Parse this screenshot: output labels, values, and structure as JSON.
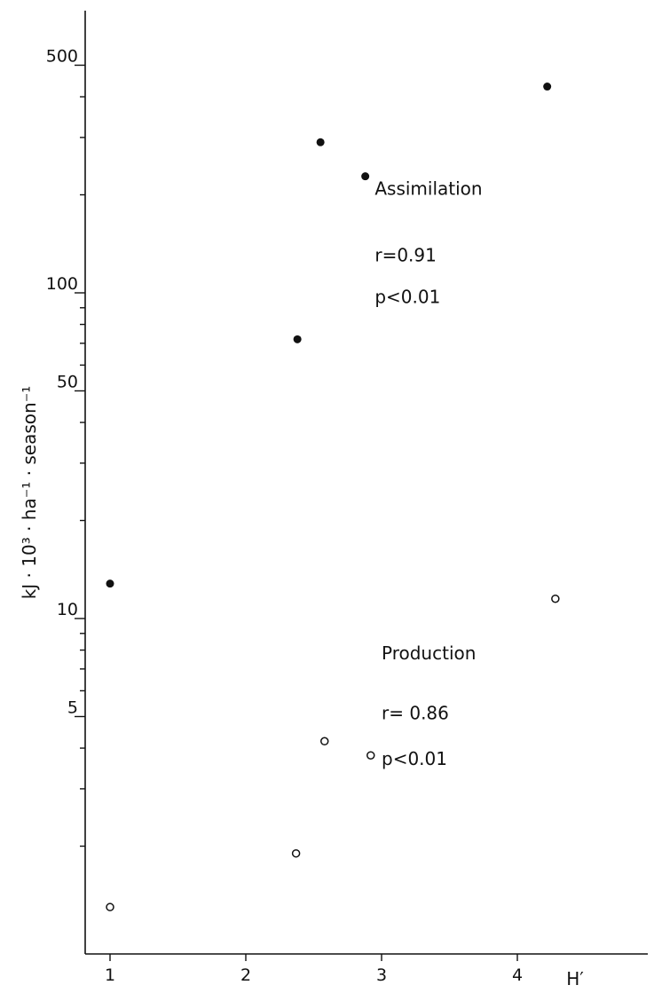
{
  "chart_data": {
    "type": "scatter",
    "xlabel": "H′",
    "ylabel": "kJ · 10³ · ha⁻¹ · season⁻¹",
    "y_scale": "log",
    "xlim": [
      0.8,
      4.9
    ],
    "ylim": [
      1.1,
      800
    ],
    "x_ticks": [
      1,
      2,
      3,
      4
    ],
    "x_tick_labels": [
      "1",
      "2",
      "3",
      "4"
    ],
    "y_labeled_ticks": [
      5,
      10,
      50,
      100,
      500
    ],
    "y_labeled_tick_labels": [
      "5",
      "10",
      "50",
      "100",
      "500"
    ],
    "y_minor_ticks": [
      2,
      3,
      4,
      6,
      7,
      8,
      9,
      20,
      30,
      40,
      60,
      70,
      80,
      90,
      200,
      300,
      400
    ],
    "grid": false,
    "series": [
      {
        "marker": "filled-circle",
        "x": [
          1.0,
          2.38,
          2.55,
          2.88,
          4.22
        ],
        "y": [
          12.8,
          72,
          290,
          228,
          430
        ]
      },
      {
        "marker": "open-circle",
        "x": [
          1.0,
          2.37,
          2.58,
          2.92,
          4.28
        ],
        "y": [
          1.3,
          1.9,
          4.2,
          3.8,
          11.5
        ]
      }
    ],
    "annotations": [
      {
        "text": "Assimilation",
        "x": 2.95,
        "y": 200
      },
      {
        "text": "r=0.91",
        "x": 2.95,
        "y": 125
      },
      {
        "text": "p<0.01",
        "x": 2.95,
        "y": 93
      },
      {
        "text": "Production",
        "x": 3.0,
        "y": 7.5
      },
      {
        "text": "r= 0.86",
        "x": 3.0,
        "y": 4.9
      },
      {
        "text": "p<0.01",
        "x": 3.0,
        "y": 3.55
      }
    ]
  }
}
